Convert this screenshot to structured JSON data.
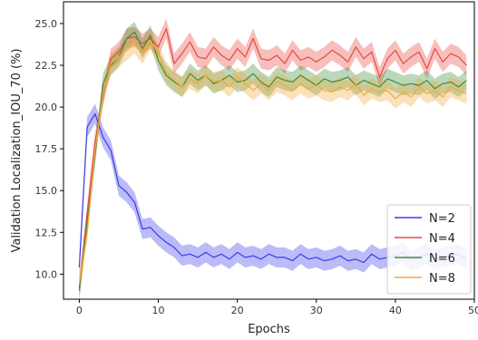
{
  "chart_data": {
    "type": "line",
    "xlabel": "Epochs",
    "ylabel": "Validation Localization_IOU_70 (%)",
    "xlim": [
      -2,
      50
    ],
    "ylim": [
      8.5,
      26.3
    ],
    "xticks": [
      0,
      10,
      20,
      30,
      40,
      50
    ],
    "yticks": [
      10.0,
      12.5,
      15.0,
      17.5,
      20.0,
      22.5,
      25.0
    ],
    "ytick_labels": [
      "10.0",
      "12.5",
      "15.0",
      "17.5",
      "20.0",
      "22.5",
      "25.0"
    ],
    "grid": false,
    "legend_position": "lower-right",
    "band_halfwidth": 0.6,
    "series": [
      {
        "name": "N=2",
        "color": "#3b3bea",
        "values": [
          10.4,
          18.8,
          19.6,
          18.2,
          17.4,
          15.3,
          14.9,
          14.3,
          12.7,
          12.8,
          12.3,
          11.9,
          11.6,
          11.1,
          11.2,
          11.0,
          11.3,
          11.0,
          11.2,
          10.9,
          11.3,
          11.0,
          11.1,
          10.9,
          11.2,
          11.0,
          11.0,
          10.8,
          11.2,
          10.9,
          11.0,
          10.8,
          10.9,
          11.1,
          10.8,
          10.9,
          10.7,
          11.2,
          10.9,
          11.0,
          11.1,
          11.3,
          10.8,
          11.0,
          11.2,
          10.9,
          11.0,
          11.1,
          11.2,
          10.9
        ]
      },
      {
        "name": "N=4",
        "color": "#e8483f",
        "values": [
          9.2,
          13.6,
          17.9,
          20.6,
          22.9,
          23.3,
          24.1,
          24.2,
          23.8,
          24.1,
          23.6,
          24.7,
          22.6,
          23.2,
          23.9,
          23.0,
          22.9,
          23.6,
          23.1,
          22.8,
          23.5,
          23.0,
          24.1,
          22.9,
          22.8,
          23.1,
          22.6,
          23.4,
          22.8,
          23.0,
          22.7,
          23.0,
          23.4,
          23.1,
          22.7,
          23.6,
          22.9,
          23.3,
          21.8,
          22.9,
          23.4,
          22.6,
          23.0,
          23.3,
          22.3,
          23.5,
          22.7,
          23.2,
          23.0,
          22.5
        ]
      },
      {
        "name": "N=6",
        "color": "#3f8c3a",
        "values": [
          9.0,
          13.1,
          17.1,
          21.4,
          22.5,
          23.0,
          24.1,
          24.5,
          23.5,
          24.3,
          22.8,
          21.9,
          21.5,
          21.2,
          22.0,
          21.6,
          21.9,
          21.4,
          21.6,
          21.9,
          21.5,
          21.6,
          22.0,
          21.5,
          21.2,
          21.8,
          21.6,
          21.5,
          21.9,
          21.6,
          21.3,
          21.7,
          21.5,
          21.6,
          21.8,
          21.3,
          21.6,
          21.4,
          21.2,
          21.7,
          21.5,
          21.3,
          21.4,
          21.3,
          21.6,
          21.1,
          21.4,
          21.5,
          21.2,
          21.6
        ]
      },
      {
        "name": "N=8",
        "color": "#f2a93b",
        "values": [
          9.4,
          12.5,
          17.4,
          20.8,
          22.6,
          23.0,
          23.4,
          23.8,
          23.2,
          24.0,
          23.2,
          22.1,
          21.6,
          21.2,
          21.7,
          21.4,
          21.9,
          21.5,
          21.6,
          21.2,
          21.8,
          21.4,
          21.0,
          21.4,
          21.0,
          21.5,
          21.3,
          21.0,
          21.4,
          21.1,
          21.3,
          21.0,
          20.9,
          21.2,
          21.0,
          21.4,
          20.7,
          21.1,
          20.9,
          21.0,
          20.5,
          20.9,
          20.6,
          21.2,
          20.8,
          21.0,
          20.6,
          21.2,
          21.0,
          20.8
        ]
      }
    ]
  }
}
